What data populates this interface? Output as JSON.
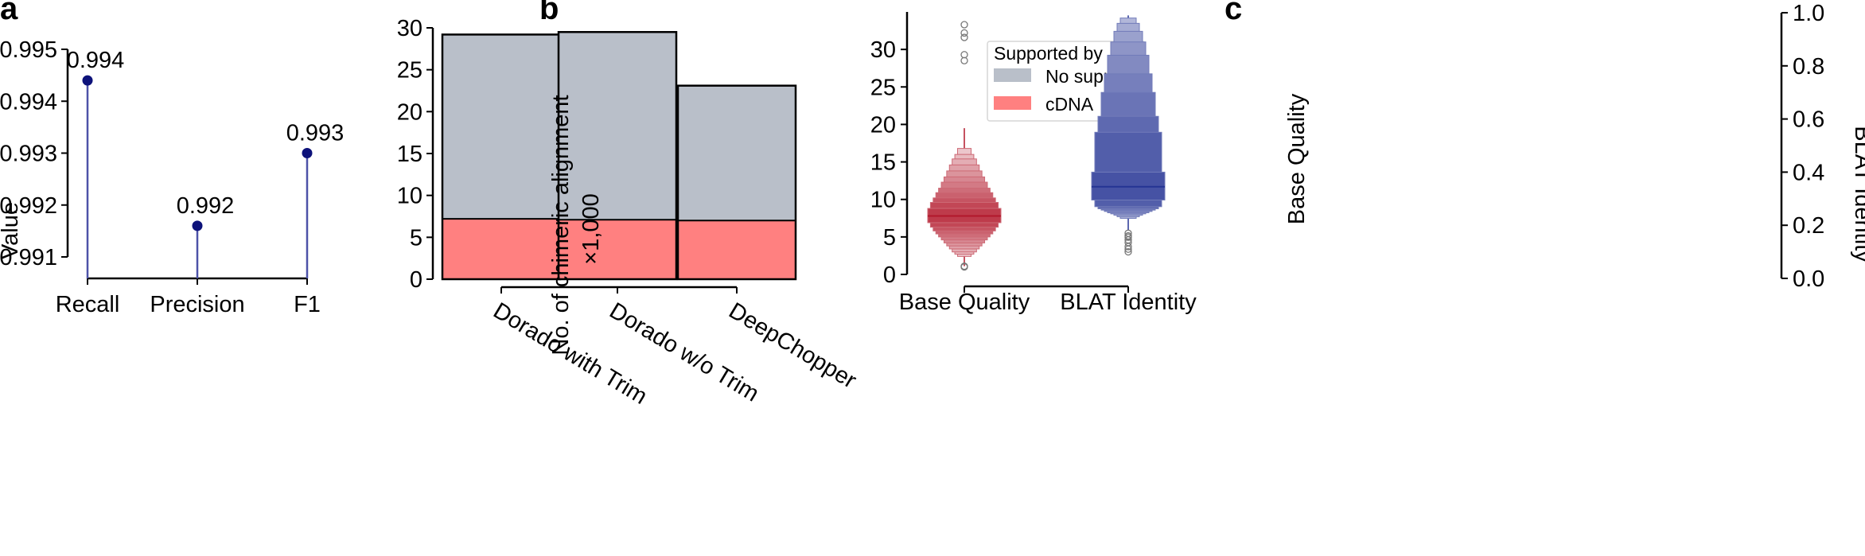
{
  "panels": [
    "a",
    "b",
    "c"
  ],
  "chart_data": [
    {
      "type": "lollipop",
      "panel": "a",
      "title": "",
      "xlabel": "",
      "ylabel": "Value",
      "categories": [
        "Recall",
        "Precision",
        "F1"
      ],
      "values": [
        0.9944,
        0.9916,
        0.993
      ],
      "value_labels": [
        "0.994",
        "0.992",
        "0.993"
      ],
      "ylim": [
        0.9906,
        0.995
      ],
      "yticks": [
        "0.991",
        "0.992",
        "0.993",
        "0.994",
        "0.995"
      ],
      "colors": {
        "stem": "#4d52a8",
        "marker": "#0d127a"
      },
      "grid": false
    },
    {
      "type": "bar",
      "stacked": true,
      "panel": "b",
      "title": "",
      "xlabel": "",
      "ylabel": "No. of chimeric alignment",
      "ylabel2": "×1,000",
      "categories": [
        "Dorado with Trim",
        "Dorado w/o Trim",
        "DeepChopper"
      ],
      "series": [
        {
          "name": "cDNA",
          "values": [
            7.2,
            7.1,
            7.0
          ],
          "color": "#ff8080"
        },
        {
          "name": "No support",
          "values": [
            22.0,
            22.4,
            16.1
          ],
          "color": "#b9bfc9"
        }
      ],
      "ylim": [
        0,
        30
      ],
      "yticks": [
        "0",
        "5",
        "10",
        "15",
        "20",
        "25",
        "30"
      ],
      "legend": {
        "title": "Supported by",
        "entries": [
          "No support",
          "cDNA"
        ],
        "position": "top-right"
      },
      "grid": false
    },
    {
      "type": "boxen",
      "panel": "c",
      "title": "",
      "xlabel": "",
      "categories": [
        "Base Quality",
        "BLAT Identity"
      ],
      "left_axis": {
        "label": "Base Quality",
        "ylim": [
          0,
          35
        ],
        "yticks": [
          "0",
          "5",
          "10",
          "15",
          "20",
          "25",
          "30"
        ]
      },
      "right_axis": {
        "label": "BLAT Identity",
        "ylim": [
          0,
          1
        ],
        "yticks": [
          "0.0",
          "0.2",
          "0.4",
          "0.6",
          "0.8",
          "1.0"
        ]
      },
      "distributions": [
        {
          "name": "Base Quality",
          "axis": "left",
          "median": 7.8,
          "whisker": [
            1.1,
            19.5
          ],
          "color": "#b2182b",
          "boxes": [
            [
              6.9,
              8.8
            ],
            [
              6.3,
              9.6
            ],
            [
              5.8,
              10.2
            ],
            [
              5.4,
              10.9
            ],
            [
              5.0,
              11.5
            ],
            [
              4.6,
              12.3
            ],
            [
              4.2,
              13.0
            ],
            [
              3.8,
              13.8
            ],
            [
              3.4,
              14.6
            ],
            [
              3.0,
              15.4
            ],
            [
              2.7,
              16.0
            ],
            [
              2.4,
              16.8
            ]
          ],
          "outliers": [
            1.0,
            1.1,
            28.5,
            29.3,
            31.6,
            32.2,
            33.3
          ]
        },
        {
          "name": "BLAT Identity",
          "axis": "right",
          "median": 0.345,
          "whisker": [
            0.18,
            0.99
          ],
          "color": "#253494",
          "boxes": [
            [
              0.295,
              0.4
            ],
            [
              0.27,
              0.55
            ],
            [
              0.262,
              0.61
            ],
            [
              0.257,
              0.7
            ],
            [
              0.252,
              0.77
            ],
            [
              0.247,
              0.84
            ],
            [
              0.243,
              0.89
            ],
            [
              0.238,
              0.93
            ],
            [
              0.232,
              0.96
            ],
            [
              0.226,
              0.98
            ]
          ],
          "outliers": [
            0.12,
            0.11,
            0.1,
            0.135,
            0.145,
            0.155,
            0.16,
            0.17
          ]
        }
      ],
      "grid": false
    }
  ]
}
